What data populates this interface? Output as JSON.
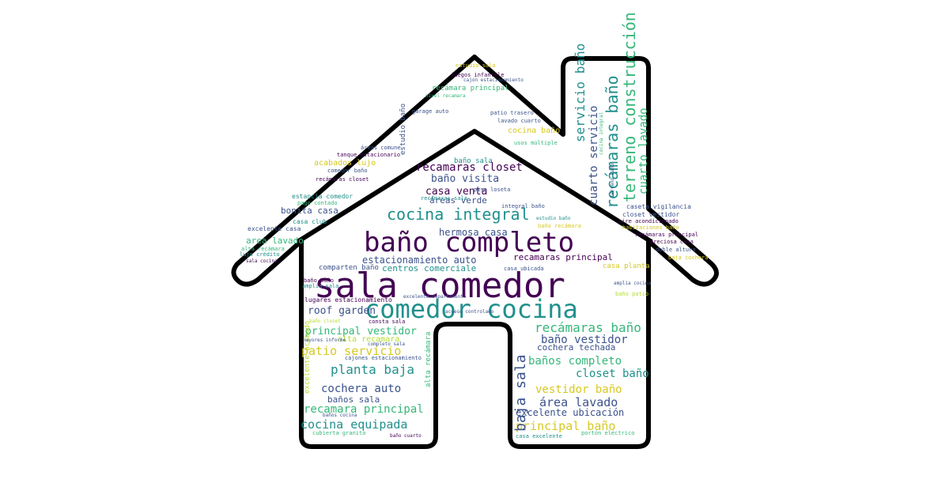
{
  "palette": {
    "dark_purple": "#440154",
    "indigo": "#3b528b",
    "teal": "#21908c",
    "green": "#35b779",
    "lime": "#b5de2b",
    "yellow": "#d6c920",
    "outline": "#000000"
  },
  "words": [
    {
      "id": "sala-comedor",
      "text": "sala comedor"
    },
    {
      "id": "bano-completo",
      "text": "baño completo"
    },
    {
      "id": "comedor-cocina",
      "text": "comedor cocina"
    },
    {
      "id": "cocina-integral",
      "text": "cocina integral"
    },
    {
      "id": "recamaras-closet",
      "text": "recamaras closet"
    },
    {
      "id": "bano-visita",
      "text": "baño visita"
    },
    {
      "id": "casa-venta",
      "text": "casa venta"
    },
    {
      "id": "areas-verde",
      "text": "áreas verde"
    },
    {
      "id": "hermosa-casa",
      "text": "hermosa casa"
    },
    {
      "id": "estacionamiento-auto",
      "text": "estacionamiento auto"
    },
    {
      "id": "recamaras-principal-1",
      "text": "recamaras principal"
    },
    {
      "id": "centros-comerciale",
      "text": "centros comerciale"
    },
    {
      "id": "roof-garden",
      "text": "roof garden"
    },
    {
      "id": "principal-vestidor",
      "text": "principal vestidor"
    },
    {
      "id": "alta-recamara",
      "text": "alta recamara"
    },
    {
      "id": "patio-servicio",
      "text": "patio servicio"
    },
    {
      "id": "planta-baja",
      "text": "planta baja"
    },
    {
      "id": "cochera-auto",
      "text": "cochera auto"
    },
    {
      "id": "banos-sala",
      "text": "baños sala"
    },
    {
      "id": "recamara-principal",
      "text": "recamara principal"
    },
    {
      "id": "cocina-equipada",
      "text": "cocina equipada"
    },
    {
      "id": "recamaras-bano-1",
      "text": "recámaras baño"
    },
    {
      "id": "bano-vestidor",
      "text": "baño vestidor"
    },
    {
      "id": "cochera-techada",
      "text": "cochera techada"
    },
    {
      "id": "banos-completo",
      "text": "baños completo"
    },
    {
      "id": "closet-bano",
      "text": "closet baño"
    },
    {
      "id": "vestidor-bano",
      "text": "vestidor baño"
    },
    {
      "id": "area-lavado",
      "text": "área lavado"
    },
    {
      "id": "excelente-ubicacion",
      "text": "excelente ubicación"
    },
    {
      "id": "principal-bano",
      "text": "principal baño"
    },
    {
      "id": "cuarto-lavado",
      "text": "cuarto lavado"
    },
    {
      "id": "bonita-casa",
      "text": "bonita casa"
    },
    {
      "id": "area-lavado-2",
      "text": "area lavado"
    },
    {
      "id": "acabados-lujo",
      "text": "acabados lujo"
    },
    {
      "id": "estancia-comedor",
      "text": "estancia comedor"
    },
    {
      "id": "pago-contado",
      "text": "pago contado"
    },
    {
      "id": "excelente-casa",
      "text": "excelente casa"
    },
    {
      "id": "casa-club",
      "text": "casa club"
    },
    {
      "id": "alta-recamara-2",
      "text": "alta recámara"
    },
    {
      "id": "lujo-credito",
      "text": "lujo crédito"
    },
    {
      "id": "comparten-bano",
      "text": "comparten baño"
    },
    {
      "id": "bano-bano",
      "text": "baño baño"
    },
    {
      "id": "amplia-sala",
      "text": "amplia sala"
    },
    {
      "id": "lugares-estacionamiento",
      "text": "lugares estacionamiento"
    },
    {
      "id": "consta-sala",
      "text": "consta sala"
    },
    {
      "id": "cajones-estacionamiento",
      "text": "cajones estacionamiento"
    },
    {
      "id": "mayores-informe",
      "text": "mayores informe"
    },
    {
      "id": "acceso-controlado",
      "text": "acceso controlado"
    },
    {
      "id": "integral-bano",
      "text": "integral baño"
    },
    {
      "id": "cubierta-granito",
      "text": "cubierta granito"
    },
    {
      "id": "bano-cuarto",
      "text": "baño cuarto"
    },
    {
      "id": "banos-cocina",
      "text": "baños cocina"
    },
    {
      "id": "casa-excelente",
      "text": "casa excelente"
    },
    {
      "id": "porton-electrico",
      "text": "portón eléctrico"
    },
    {
      "id": "juegos-infantile",
      "text": "juegos infantile"
    },
    {
      "id": "recamara-principal-2",
      "text": "recámara principal"
    },
    {
      "id": "estudio-sala",
      "text": "estudio sala"
    },
    {
      "id": "cajon-estacionamiento",
      "text": "cajón estacionamiento"
    },
    {
      "id": "nivel-recamara",
      "text": "nivel recamara"
    },
    {
      "id": "garage-auto",
      "text": "garage auto"
    },
    {
      "id": "patio-trasero",
      "text": "patio trasero"
    },
    {
      "id": "lavado-cuarto",
      "text": "lavado cuarto"
    },
    {
      "id": "cocina-bano",
      "text": "cocina baño"
    },
    {
      "id": "usos-multiple",
      "text": "usos múltiple"
    },
    {
      "id": "areas-comune",
      "text": "áreas comune"
    },
    {
      "id": "tanque-estacionario",
      "text": "tanque estacionario"
    },
    {
      "id": "bano-sala",
      "text": "baño sala"
    },
    {
      "id": "comedor-bano",
      "text": "comedor baño"
    },
    {
      "id": "recamaras-closet-2",
      "text": "recámaras closet"
    },
    {
      "id": "piso-loseta",
      "text": "piso loseta"
    },
    {
      "id": "recamaras-sala",
      "text": "recámaras sala"
    },
    {
      "id": "estudio-bano",
      "text": "estudio baño"
    },
    {
      "id": "bano-recamara",
      "text": "baño recámara"
    },
    {
      "id": "casa-planta",
      "text": "casa planta"
    },
    {
      "id": "casa-ubicada",
      "text": "casa ubicada"
    },
    {
      "id": "excelente-departamento",
      "text": "excelente departamento"
    },
    {
      "id": "caseta-vigilancia",
      "text": "caseta vigilancia"
    },
    {
      "id": "closet-vestidor",
      "text": "closet vestidor"
    },
    {
      "id": "aire-acondicionado",
      "text": "aire acondicionado"
    },
    {
      "id": "recamaras-principal-2",
      "text": "recámaras principal"
    },
    {
      "id": "preciosa-casa",
      "text": "preciosa casa"
    },
    {
      "id": "doble-altura",
      "text": "doble altura"
    },
    {
      "id": "baja-cochera",
      "text": "baja cochera"
    },
    {
      "id": "habitaciones-bano",
      "text": "habitaciones baño"
    },
    {
      "id": "bano-patio",
      "text": "baño patio"
    },
    {
      "id": "amplia-cocina",
      "text": "amplia cocina"
    },
    {
      "id": "sala-cocina",
      "text": "sala cocina"
    },
    {
      "id": "bano-closet",
      "text": "baño closet"
    },
    {
      "id": "completo-sala",
      "text": "completo sala"
    },
    {
      "id": "planta-alta",
      "text": "planta alta"
    },
    {
      "id": "servicio-bano",
      "text": "servicio baño"
    },
    {
      "id": "cuarto-servicio",
      "text": "cuarto servicio"
    },
    {
      "id": "recamaras-bano-v",
      "text": "recámaras baño"
    },
    {
      "id": "terreno-construccion",
      "text": "terreno construcción"
    },
    {
      "id": "cuarto-lavado-v",
      "text": "cuarto lavado"
    },
    {
      "id": "baja-sala",
      "text": "baja sala"
    },
    {
      "id": "estudio-bano-v",
      "text": "estudio baño"
    },
    {
      "id": "alta-recamara-v",
      "text": "alta recámara"
    },
    {
      "id": "excelente-acabado-v",
      "text": "excelente acabado"
    },
    {
      "id": "cocina-integral-v",
      "text": "cocina integral"
    },
    {
      "id": "terreno-bano-v",
      "text": "terreno baño"
    }
  ]
}
